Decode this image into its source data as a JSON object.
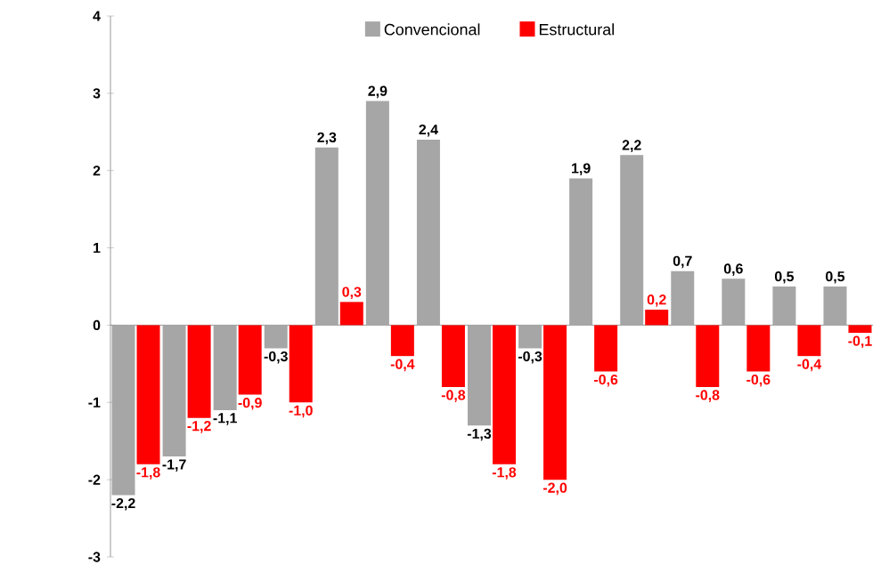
{
  "chart_data": {
    "type": "bar",
    "categories": [
      null,
      null,
      null,
      null,
      null,
      null,
      null,
      null,
      null,
      null,
      null,
      null,
      null,
      null,
      null
    ],
    "series": [
      {
        "name": "Convencional",
        "color": "#a6a6a6",
        "values": [
          -2.2,
          -1.7,
          -1.1,
          -0.3,
          2.3,
          2.9,
          2.4,
          -1.3,
          -0.3,
          1.9,
          2.2,
          0.7,
          0.6,
          0.5,
          0.5
        ],
        "value_labels": [
          "-2,2",
          "-1,7",
          "-1,1",
          "-0,3",
          "2,3",
          "2,9",
          "2,4",
          "-1,3",
          "-0,3",
          "1,9",
          "2,2",
          "0,7",
          "0,6",
          "0,5",
          "0,5"
        ]
      },
      {
        "name": "Estructural",
        "color": "#ff0000",
        "values": [
          -1.8,
          -1.2,
          -0.9,
          -1.0,
          0.3,
          -0.4,
          -0.8,
          -1.8,
          -2.0,
          -0.6,
          0.2,
          -0.8,
          -0.6,
          -0.4,
          -0.1
        ],
        "value_labels": [
          "-1,8",
          "-1,2",
          "-0,9",
          "-1,0",
          "0,3",
          "-0,4",
          "-0,8",
          "-1,8",
          "-2,0",
          "-0,6",
          "0,2",
          "-0,8",
          "-0,6",
          "-0,4",
          "-0,1"
        ]
      }
    ],
    "ylim": [
      -3,
      4
    ],
    "yticks": [
      -3,
      -2,
      -1,
      0,
      1,
      2,
      3,
      4
    ],
    "legend": "top",
    "tick_labels": "y"
  }
}
